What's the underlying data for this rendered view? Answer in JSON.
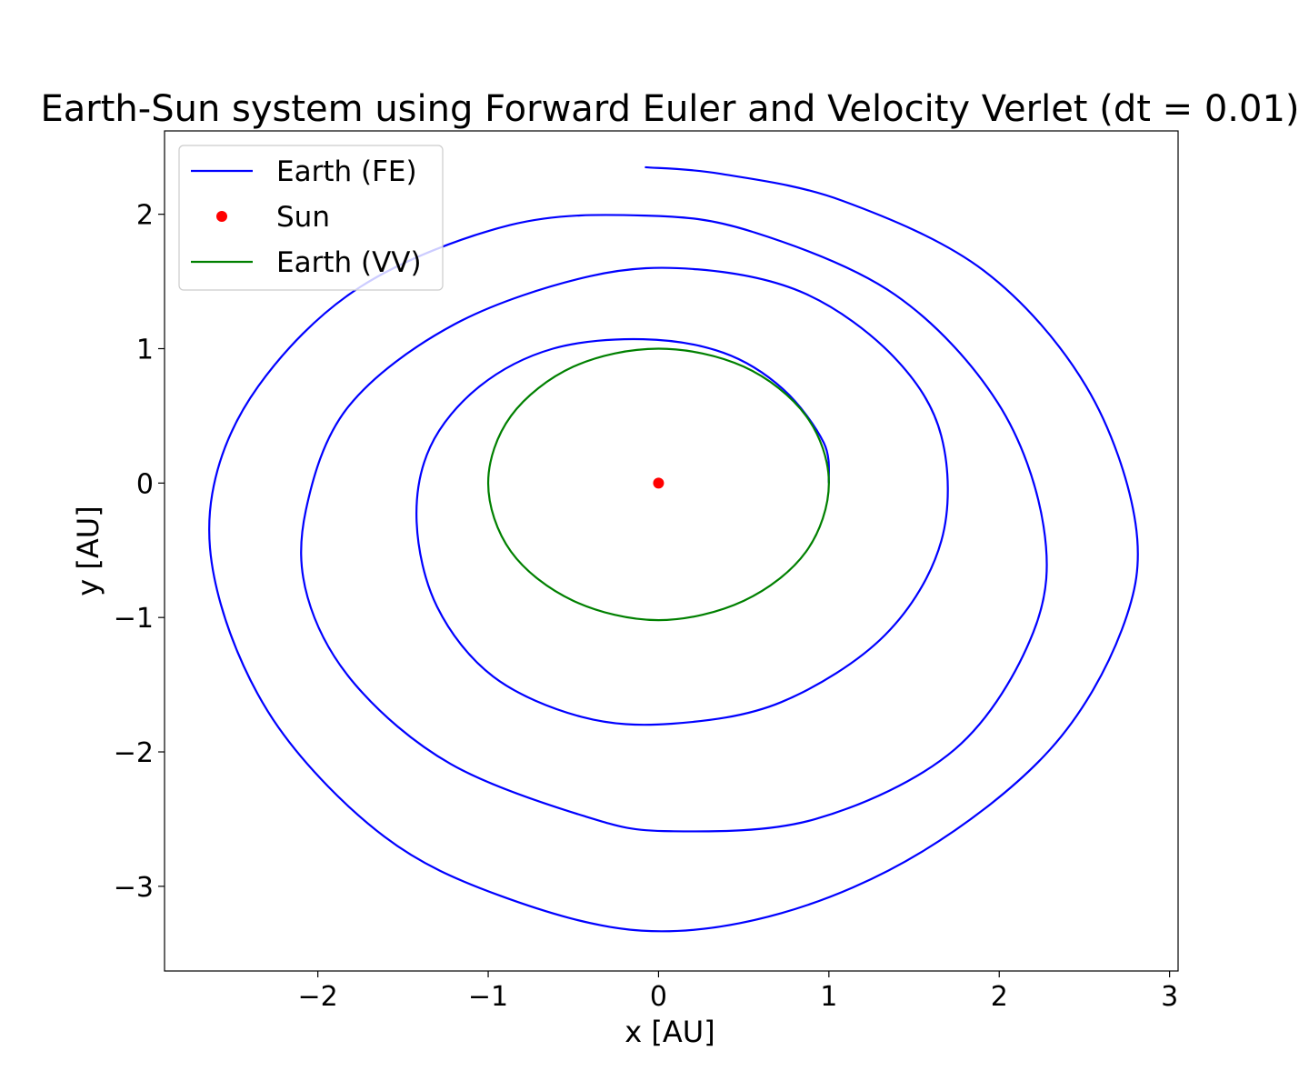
{
  "chart_data": {
    "type": "line",
    "title": "Earth-Sun system using Forward Euler and Velocity Verlet (dt = 0.01)",
    "xlabel": "x [AU]",
    "ylabel": "y [AU]",
    "xlim": [
      -2.9,
      3.05
    ],
    "ylim": [
      -3.63,
      2.62
    ],
    "xticks": [
      -2,
      -1,
      0,
      1,
      2,
      3
    ],
    "yticks": [
      -3,
      -2,
      -1,
      0,
      1,
      2
    ],
    "xtick_labels": [
      "−2",
      "−1",
      "0",
      "1",
      "2",
      "3"
    ],
    "ytick_labels": [
      "−3",
      "−2",
      "−1",
      "0",
      "1",
      "2"
    ],
    "grid": false,
    "legend_position": "upper-left",
    "legend": [
      {
        "label": "Earth (FE)",
        "kind": "line",
        "color": "#0000ff"
      },
      {
        "label": "Sun",
        "kind": "marker",
        "color": "#ff0000"
      },
      {
        "label": "Earth (VV)",
        "kind": "line",
        "color": "#008000"
      }
    ],
    "series": [
      {
        "name": "Earth (FE)",
        "kind": "line",
        "color": "#0000ff",
        "x": [
          1.0,
          0.97,
          0.73,
          0.38,
          -0.09,
          -0.62,
          -1.05,
          -1.34,
          -1.42,
          -1.3,
          -0.97,
          -0.45,
          0.08,
          0.72,
          1.33,
          1.66,
          1.66,
          1.38,
          0.86,
          0.23,
          -0.4,
          -1.2,
          -1.82,
          -2.07,
          -2.06,
          -1.78,
          -1.22,
          -0.43,
          0.07,
          0.92,
          1.74,
          2.2,
          2.26,
          1.99,
          1.39,
          0.55,
          -0.08,
          -0.87,
          -1.75,
          -2.35,
          -2.62,
          -2.57,
          -2.23,
          -1.61,
          -0.93,
          -0.1,
          0.72,
          1.55,
          2.3,
          2.72,
          2.8,
          2.51,
          1.91,
          1.08,
          0.37,
          -0.08
        ],
        "y": [
          0.0,
          0.3,
          0.7,
          0.97,
          1.07,
          1.0,
          0.72,
          0.27,
          -0.29,
          -0.92,
          -1.44,
          -1.74,
          -1.79,
          -1.63,
          -1.13,
          -0.43,
          0.35,
          0.94,
          1.41,
          1.59,
          1.54,
          1.18,
          0.57,
          -0.2,
          -0.85,
          -1.5,
          -2.09,
          -2.48,
          -2.59,
          -2.5,
          -1.98,
          -1.11,
          -0.32,
          0.6,
          1.4,
          1.87,
          1.99,
          1.92,
          1.46,
          0.72,
          -0.08,
          -0.9,
          -1.82,
          -2.63,
          -3.07,
          -3.33,
          -3.2,
          -2.74,
          -1.98,
          -1.09,
          -0.3,
          0.72,
          1.58,
          2.1,
          2.3,
          2.35
        ]
      },
      {
        "name": "Sun",
        "kind": "marker",
        "color": "#ff0000",
        "x": [
          0.0
        ],
        "y": [
          0.0
        ]
      },
      {
        "name": "Earth (VV)",
        "kind": "line",
        "color": "#008000",
        "x": [
          1.0,
          0.866,
          0.5,
          0.0,
          -0.5,
          -0.866,
          -1.0,
          -0.866,
          -0.5,
          0.0,
          0.5,
          0.866,
          1.0
        ],
        "y": [
          0.0,
          0.5,
          0.866,
          1.0,
          0.866,
          0.5,
          0.0,
          -0.51,
          -0.876,
          -1.02,
          -0.876,
          -0.51,
          0.0
        ]
      }
    ]
  }
}
